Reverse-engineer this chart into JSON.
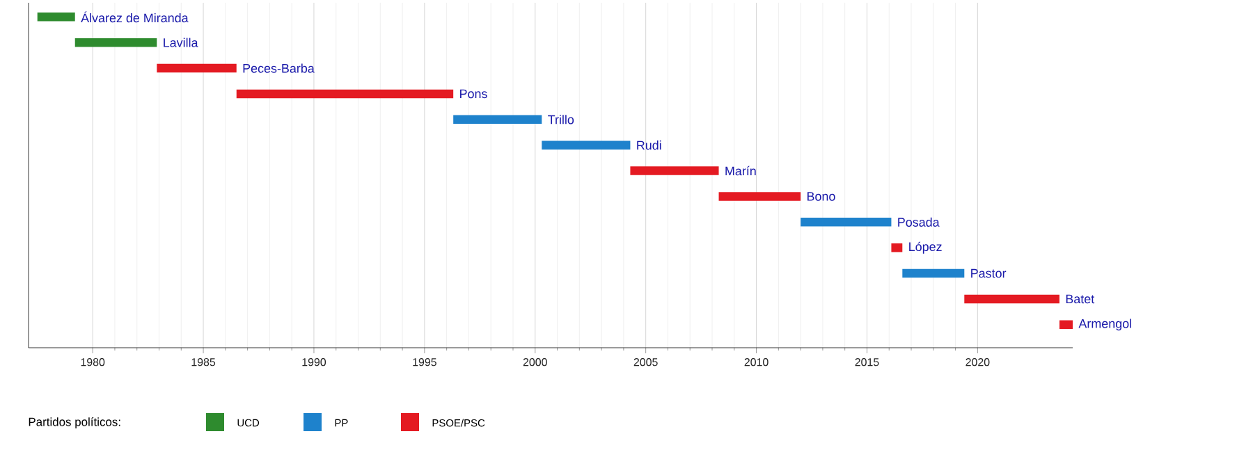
{
  "chart_data": {
    "type": "bar",
    "orientation": "horizontal",
    "categories": [
      "Álvarez de Miranda",
      "Lavilla",
      "Peces-Barba",
      "Pons",
      "Trillo",
      "Rudi",
      "Marín",
      "Bono",
      "Posada",
      "López",
      "Pastor",
      "Batet",
      "Armengol"
    ],
    "series": [
      {
        "name": "UCD",
        "color": "#2e8b2e",
        "values": [
          1.7,
          3.7,
          null,
          null,
          null,
          null,
          null,
          null,
          null,
          null,
          null,
          null,
          null
        ],
        "base": [
          1977.5,
          1979.2,
          null,
          null,
          null,
          null,
          null,
          null,
          null,
          null,
          null,
          null,
          null
        ]
      },
      {
        "name": "PP",
        "color": "#1e82cc",
        "values": [
          null,
          null,
          null,
          null,
          4.0,
          4.0,
          null,
          null,
          4.1,
          null,
          2.8,
          null,
          null
        ],
        "base": [
          null,
          null,
          null,
          null,
          1996.3,
          2000.3,
          null,
          null,
          2012.0,
          null,
          2016.6,
          null,
          null
        ]
      },
      {
        "name": "PSOE/PSC",
        "color": "#e41a22",
        "values": [
          null,
          null,
          3.6,
          9.8,
          null,
          null,
          4.0,
          3.7,
          null,
          0.5,
          null,
          4.3,
          0.6
        ],
        "base": [
          null,
          null,
          1982.9,
          1986.5,
          null,
          null,
          2004.3,
          2008.3,
          null,
          2016.1,
          null,
          2019.4,
          2023.7
        ]
      }
    ],
    "legend_title": "Partidos políticos:",
    "legend": "bottom left",
    "xlim": [
      1977.1,
      2024.3
    ],
    "xticks": [
      1980,
      1985,
      1990,
      1995,
      2000,
      2005,
      2010,
      2015,
      2020
    ],
    "grid": "x"
  }
}
